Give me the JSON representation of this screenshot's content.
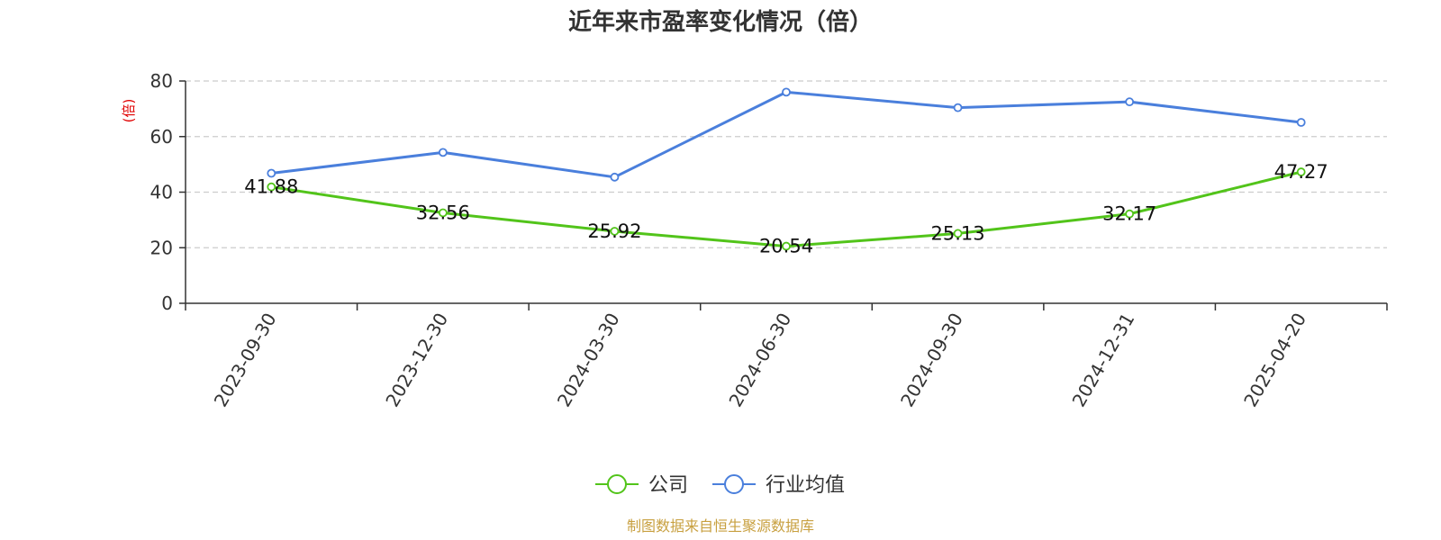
{
  "chart_data": {
    "type": "line",
    "title": "近年来市盈率变化情况（倍）",
    "ylabel": "(倍)",
    "xlabel": "",
    "categories": [
      "2023-09-30",
      "2023-12-30",
      "2024-03-30",
      "2024-06-30",
      "2024-09-30",
      "2024-12-31",
      "2025-04-20"
    ],
    "ylim": [
      0,
      80
    ],
    "yticks": [
      0,
      20,
      40,
      60,
      80
    ],
    "grid": true,
    "legend_position": "bottom-center",
    "series": [
      {
        "name": "公司",
        "color": "#52c41a",
        "values": [
          41.88,
          32.56,
          25.92,
          20.54,
          25.13,
          32.17,
          47.27
        ],
        "labels": [
          "41.88",
          "32.56",
          "25.92",
          "20.54",
          "25.13",
          "32.17",
          "47.27"
        ]
      },
      {
        "name": "行业均值",
        "color": "#4a7fdc",
        "values": [
          46.8,
          54.3,
          45.4,
          76.0,
          70.4,
          72.5,
          65.1
        ]
      }
    ]
  },
  "source": "制图数据来自恒生聚源数据库"
}
